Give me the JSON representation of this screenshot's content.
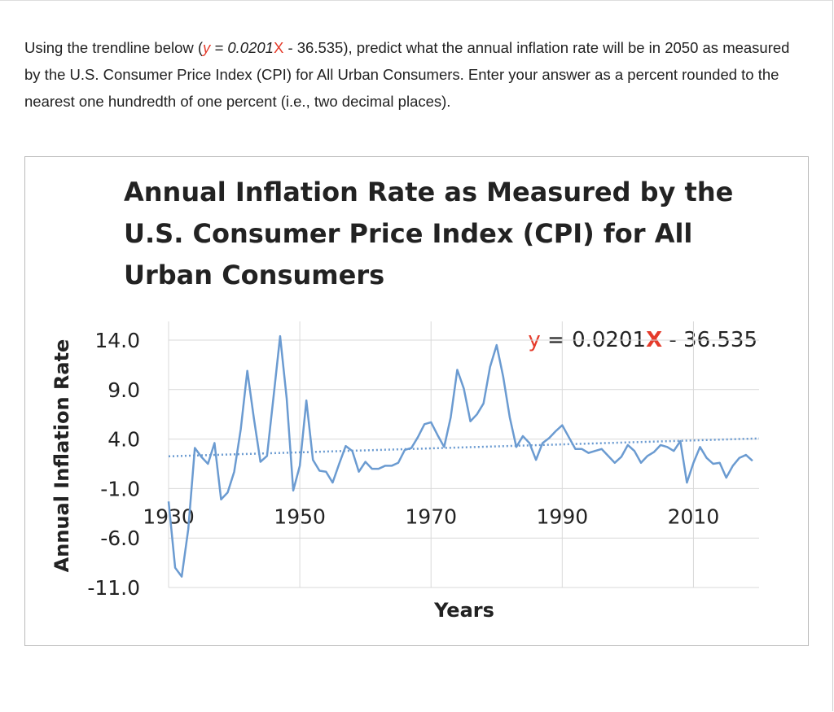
{
  "question": [
    "Using the trendline below (",
    "y",
    " = 0.0201",
    "X",
    " - 36.535),  predict what the annual inflation rate will be in 2050 as measured by the U.S. Consumer Price Index (CPI) for All Urban Consumers. Enter your answer as a percent rounded to the nearest one hundredth of one percent (i.e., two decimal places)."
  ],
  "chart_data": {
    "type": "line",
    "title": [
      "Annual Inflation Rate as Measured by the",
      "U.S. Consumer Price Index (CPI) for All",
      "Urban Consumers"
    ],
    "x_label": "Years",
    "y_label": "Annual Inflation Rate",
    "x": [
      1930,
      1931,
      1932,
      1933,
      1934,
      1935,
      1936,
      1937,
      1938,
      1939,
      1940,
      1941,
      1942,
      1943,
      1944,
      1945,
      1946,
      1947,
      1948,
      1949,
      1950,
      1951,
      1952,
      1953,
      1954,
      1955,
      1956,
      1957,
      1958,
      1959,
      1960,
      1961,
      1962,
      1963,
      1964,
      1965,
      1966,
      1967,
      1968,
      1969,
      1970,
      1971,
      1972,
      1973,
      1974,
      1975,
      1976,
      1977,
      1978,
      1979,
      1980,
      1981,
      1982,
      1983,
      1984,
      1985,
      1986,
      1987,
      1988,
      1989,
      1990,
      1991,
      1992,
      1993,
      1994,
      1995,
      1996,
      1997,
      1998,
      1999,
      2000,
      2001,
      2002,
      2003,
      2004,
      2005,
      2006,
      2007,
      2008,
      2009,
      2010,
      2011,
      2012,
      2013,
      2014,
      2015,
      2016,
      2017,
      2018,
      2019
    ],
    "values": [
      -2.3,
      -9.0,
      -9.9,
      -5.1,
      3.1,
      2.2,
      1.5,
      3.6,
      -2.1,
      -1.4,
      0.7,
      5.0,
      10.9,
      6.1,
      1.7,
      2.3,
      8.3,
      14.4,
      8.1,
      -1.2,
      1.3,
      7.9,
      1.9,
      0.8,
      0.7,
      -0.4,
      1.5,
      3.3,
      2.8,
      0.7,
      1.7,
      1.0,
      1.0,
      1.3,
      1.3,
      1.6,
      2.9,
      3.1,
      4.2,
      5.5,
      5.7,
      4.4,
      3.2,
      6.2,
      11.0,
      9.1,
      5.8,
      6.5,
      7.6,
      11.3,
      13.5,
      10.3,
      6.2,
      3.2,
      4.3,
      3.6,
      1.9,
      3.6,
      4.1,
      4.8,
      5.4,
      4.2,
      3.0,
      3.0,
      2.6,
      2.8,
      3.0,
      2.3,
      1.6,
      2.2,
      3.4,
      2.8,
      1.6,
      2.3,
      2.7,
      3.4,
      3.2,
      2.8,
      3.8,
      -0.4,
      1.6,
      3.2,
      2.1,
      1.5,
      1.6,
      0.1,
      1.3,
      2.1,
      2.4,
      1.8
    ],
    "color": "#6b9bd1",
    "xlim": [
      1930,
      2020
    ],
    "xticks": [
      1930,
      1950,
      1970,
      1990,
      2010
    ],
    "ylim": [
      -11,
      14
    ],
    "yticks": [
      {
        "value": -11,
        "label": "-11.0"
      },
      {
        "value": -6,
        "label": "-6.0"
      },
      {
        "value": -1,
        "label": "-1.0"
      },
      {
        "value": 4,
        "label": "4.0"
      },
      {
        "value": 9,
        "label": "9.0"
      },
      {
        "value": 14,
        "label": "14.0"
      }
    ],
    "grid": true,
    "trendline": {
      "slope": 0.0201,
      "intercept": -36.535,
      "equation": [
        "y",
        " = 0.0201",
        "X",
        " - 36.535"
      ]
    }
  }
}
